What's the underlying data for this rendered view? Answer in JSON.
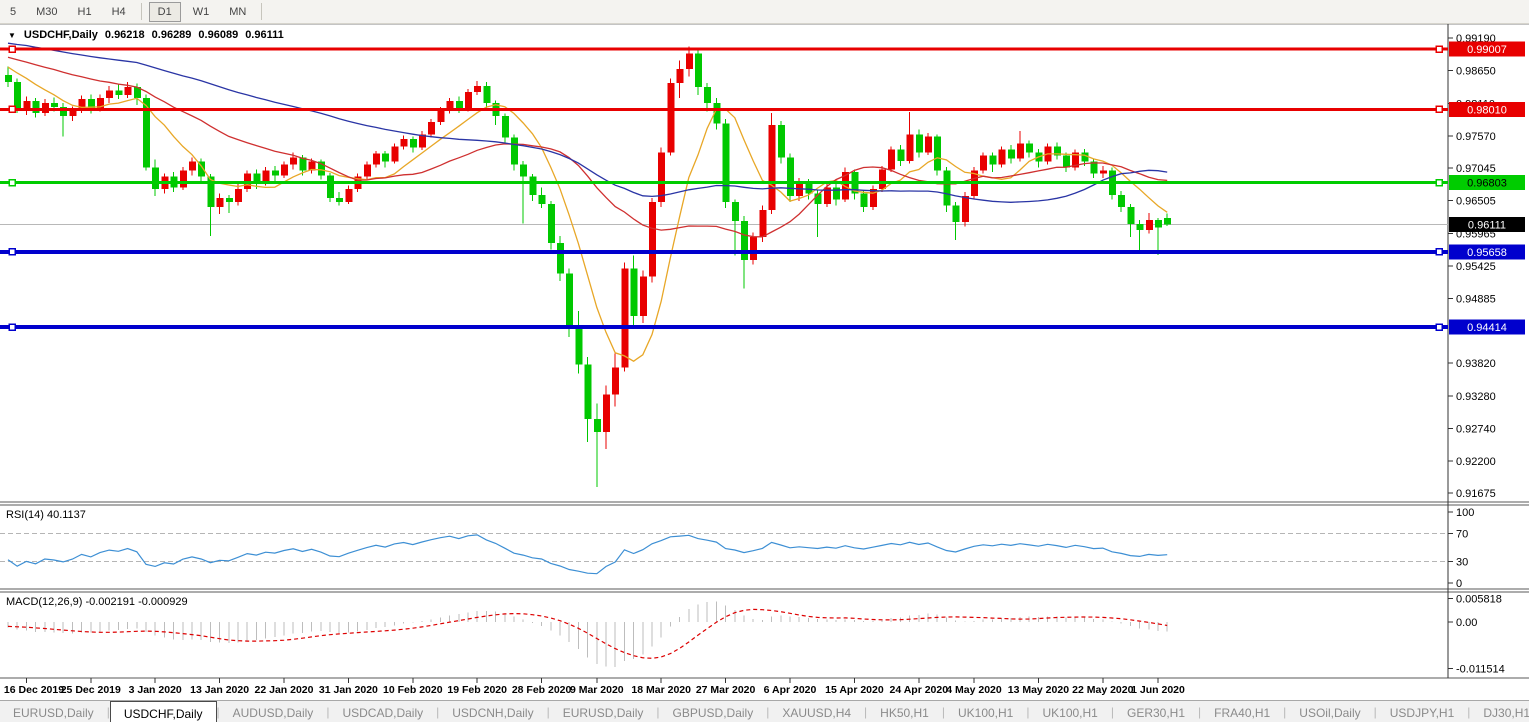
{
  "toolbar": {
    "timeframes": [
      "5",
      "M30",
      "H1",
      "H4",
      "D1",
      "W1",
      "MN"
    ],
    "active_timeframe": "D1"
  },
  "chart_header": {
    "symbol": "USDCHF,Daily",
    "open": "0.96218",
    "high": "0.96289",
    "low": "0.96089",
    "close": "0.96111"
  },
  "price_axis": {
    "ticks": [
      "0.99190",
      "0.98650",
      "0.98110",
      "0.97570",
      "0.97045",
      "0.96505",
      "0.95965",
      "0.95425",
      "0.94885",
      "0.93820",
      "0.93280",
      "0.92740",
      "0.92200",
      "0.91675"
    ],
    "top_price": 0.9919,
    "bottom_price": 0.91675
  },
  "levels": [
    {
      "label": "0.99007",
      "price": 0.99007,
      "color": "#e80000",
      "text_color": "#ffffff",
      "thickness": 3
    },
    {
      "label": "0.98010",
      "price": 0.9801,
      "color": "#e80000",
      "text_color": "#ffffff",
      "thickness": 3
    },
    {
      "label": "0.96803",
      "price": 0.96803,
      "color": "#00cc00",
      "text_color": "#000000",
      "thickness": 3
    },
    {
      "label": "0.95658",
      "price": 0.95658,
      "color": "#0000cd",
      "text_color": "#ffffff",
      "thickness": 4
    },
    {
      "label": "0.94414",
      "price": 0.94414,
      "color": "#0000cd",
      "text_color": "#ffffff",
      "thickness": 4
    }
  ],
  "current_price": {
    "label": "0.96111",
    "price": 0.96111,
    "badge_bg": "#000000",
    "badge_text": "#ffffff",
    "line_color": "#b8b8b8"
  },
  "chart_data": {
    "type": "candlestick",
    "symbol": "USDCHF",
    "timeframe": "Daily",
    "colors": {
      "bull": "#e80000",
      "bear": "#00c800"
    },
    "moving_averages": [
      {
        "type": "sma",
        "period": 8,
        "color": "#e8a727"
      },
      {
        "type": "sma",
        "period": 24,
        "color": "#cf3030"
      },
      {
        "type": "sma",
        "period": 55,
        "color": "#2a35a5"
      }
    ],
    "pre_history_closes": [
      0.9954,
      0.9944,
      0.9952,
      0.9941,
      0.9949,
      0.9938,
      0.9946,
      0.9935,
      0.9943,
      0.9932,
      0.994,
      0.9929,
      0.9937,
      0.9926,
      0.9934,
      0.9923,
      0.9931,
      0.992,
      0.9928,
      0.9917,
      0.9925,
      0.9914,
      0.9922,
      0.9911,
      0.9919,
      0.9908,
      0.9916,
      0.9905,
      0.9913,
      0.9902,
      0.991,
      0.9899,
      0.9907,
      0.9896,
      0.9904,
      0.9893,
      0.9901,
      0.989,
      0.9898,
      0.9887,
      0.9895,
      0.9884,
      0.9892,
      0.9881,
      0.9889,
      0.9878,
      0.9886,
      0.9875,
      0.9883,
      0.9872,
      0.9868,
      0.986
    ],
    "candles": [
      [
        0.9858,
        0.9872,
        0.9838,
        0.9846
      ],
      [
        0.9846,
        0.9852,
        0.9795,
        0.98
      ],
      [
        0.98,
        0.9822,
        0.9792,
        0.9815
      ],
      [
        0.9815,
        0.982,
        0.9788,
        0.9795
      ],
      [
        0.9795,
        0.9818,
        0.979,
        0.9812
      ],
      [
        0.9812,
        0.9821,
        0.9798,
        0.9805
      ],
      [
        0.9805,
        0.9812,
        0.9756,
        0.979
      ],
      [
        0.979,
        0.9806,
        0.9782,
        0.98
      ],
      [
        0.98,
        0.9824,
        0.9795,
        0.9818
      ],
      [
        0.9818,
        0.9826,
        0.9794,
        0.9802
      ],
      [
        0.9802,
        0.9826,
        0.9798,
        0.982
      ],
      [
        0.982,
        0.984,
        0.9812,
        0.9832
      ],
      [
        0.9832,
        0.9842,
        0.9818,
        0.9825
      ],
      [
        0.9825,
        0.9846,
        0.982,
        0.9838
      ],
      [
        0.9838,
        0.9844,
        0.9808,
        0.982
      ],
      [
        0.982,
        0.9826,
        0.97,
        0.9705
      ],
      [
        0.9705,
        0.9718,
        0.9658,
        0.967
      ],
      [
        0.967,
        0.9695,
        0.9662,
        0.969
      ],
      [
        0.969,
        0.9698,
        0.9665,
        0.9672
      ],
      [
        0.9672,
        0.9706,
        0.9668,
        0.97
      ],
      [
        0.97,
        0.9722,
        0.9692,
        0.9715
      ],
      [
        0.9715,
        0.972,
        0.9682,
        0.969
      ],
      [
        0.969,
        0.9694,
        0.9592,
        0.964
      ],
      [
        0.964,
        0.9662,
        0.9628,
        0.9655
      ],
      [
        0.9655,
        0.966,
        0.963,
        0.9648
      ],
      [
        0.9648,
        0.9678,
        0.9642,
        0.967
      ],
      [
        0.967,
        0.97,
        0.9665,
        0.9695
      ],
      [
        0.9695,
        0.9702,
        0.967,
        0.968
      ],
      [
        0.968,
        0.9706,
        0.9675,
        0.97
      ],
      [
        0.97,
        0.9708,
        0.9682,
        0.9692
      ],
      [
        0.9692,
        0.9715,
        0.9688,
        0.971
      ],
      [
        0.971,
        0.973,
        0.9702,
        0.9722
      ],
      [
        0.9722,
        0.9726,
        0.9692,
        0.97
      ],
      [
        0.97,
        0.972,
        0.9695,
        0.9715
      ],
      [
        0.9715,
        0.9718,
        0.9685,
        0.9692
      ],
      [
        0.9692,
        0.9696,
        0.9648,
        0.9655
      ],
      [
        0.9655,
        0.9665,
        0.9642,
        0.9648
      ],
      [
        0.9648,
        0.9675,
        0.9645,
        0.967
      ],
      [
        0.967,
        0.9695,
        0.9665,
        0.969
      ],
      [
        0.969,
        0.9715,
        0.9686,
        0.971
      ],
      [
        0.971,
        0.9732,
        0.9705,
        0.9728
      ],
      [
        0.9728,
        0.9732,
        0.9705,
        0.9715
      ],
      [
        0.9715,
        0.9745,
        0.9712,
        0.974
      ],
      [
        0.974,
        0.9758,
        0.9735,
        0.9752
      ],
      [
        0.9752,
        0.9756,
        0.973,
        0.9738
      ],
      [
        0.9738,
        0.9765,
        0.9734,
        0.976
      ],
      [
        0.976,
        0.9785,
        0.9755,
        0.978
      ],
      [
        0.978,
        0.9805,
        0.9775,
        0.98
      ],
      [
        0.98,
        0.982,
        0.9794,
        0.9815
      ],
      [
        0.9815,
        0.9822,
        0.9795,
        0.9802
      ],
      [
        0.9802,
        0.9835,
        0.9798,
        0.983
      ],
      [
        0.983,
        0.9848,
        0.9825,
        0.984
      ],
      [
        0.984,
        0.9846,
        0.98,
        0.9812
      ],
      [
        0.9812,
        0.9816,
        0.9775,
        0.979
      ],
      [
        0.979,
        0.9794,
        0.9745,
        0.9755
      ],
      [
        0.9755,
        0.976,
        0.97,
        0.971
      ],
      [
        0.971,
        0.9716,
        0.9613,
        0.969
      ],
      [
        0.969,
        0.9694,
        0.965,
        0.966
      ],
      [
        0.966,
        0.9672,
        0.9638,
        0.9645
      ],
      [
        0.9645,
        0.965,
        0.957,
        0.958
      ],
      [
        0.958,
        0.9592,
        0.9518,
        0.953
      ],
      [
        0.953,
        0.9538,
        0.9425,
        0.944
      ],
      [
        0.944,
        0.9468,
        0.9365,
        0.938
      ],
      [
        0.938,
        0.9392,
        0.9252,
        0.929
      ],
      [
        0.929,
        0.9315,
        0.9177,
        0.9268
      ],
      [
        0.9268,
        0.9345,
        0.924,
        0.933
      ],
      [
        0.933,
        0.9398,
        0.931,
        0.9375
      ],
      [
        0.9375,
        0.9548,
        0.9368,
        0.9538
      ],
      [
        0.9538,
        0.956,
        0.944,
        0.946
      ],
      [
        0.946,
        0.9535,
        0.9448,
        0.9525
      ],
      [
        0.9525,
        0.9655,
        0.9515,
        0.9648
      ],
      [
        0.9648,
        0.9738,
        0.964,
        0.973
      ],
      [
        0.973,
        0.9852,
        0.9725,
        0.9845
      ],
      [
        0.9845,
        0.9882,
        0.982,
        0.9868
      ],
      [
        0.9868,
        0.9905,
        0.9855,
        0.9893
      ],
      [
        0.9893,
        0.9898,
        0.9825,
        0.9838
      ],
      [
        0.9838,
        0.9845,
        0.9798,
        0.9812
      ],
      [
        0.9812,
        0.982,
        0.9768,
        0.9778
      ],
      [
        0.9778,
        0.9785,
        0.9638,
        0.9648
      ],
      [
        0.9648,
        0.9652,
        0.956,
        0.9617
      ],
      [
        0.9617,
        0.9625,
        0.9505,
        0.9552
      ],
      [
        0.9552,
        0.9598,
        0.9545,
        0.959
      ],
      [
        0.959,
        0.9642,
        0.9582,
        0.9635
      ],
      [
        0.9635,
        0.9795,
        0.9628,
        0.9775
      ],
      [
        0.9775,
        0.9782,
        0.9712,
        0.9722
      ],
      [
        0.9722,
        0.9728,
        0.9648,
        0.9658
      ],
      [
        0.9658,
        0.9688,
        0.965,
        0.9682
      ],
      [
        0.9682,
        0.9686,
        0.9652,
        0.9662
      ],
      [
        0.9662,
        0.9668,
        0.959,
        0.9645
      ],
      [
        0.9645,
        0.968,
        0.964,
        0.9672
      ],
      [
        0.9672,
        0.9678,
        0.9642,
        0.9652
      ],
      [
        0.9652,
        0.9705,
        0.9648,
        0.9698
      ],
      [
        0.9698,
        0.9702,
        0.9652,
        0.9662
      ],
      [
        0.9662,
        0.9668,
        0.9632,
        0.964
      ],
      [
        0.964,
        0.9675,
        0.9635,
        0.967
      ],
      [
        0.967,
        0.9708,
        0.9665,
        0.9702
      ],
      [
        0.9702,
        0.974,
        0.9698,
        0.9735
      ],
      [
        0.9735,
        0.9742,
        0.9708,
        0.9716
      ],
      [
        0.9716,
        0.9797,
        0.9712,
        0.976
      ],
      [
        0.976,
        0.9768,
        0.9722,
        0.973
      ],
      [
        0.973,
        0.9762,
        0.9726,
        0.9756
      ],
      [
        0.9756,
        0.976,
        0.9692,
        0.97
      ],
      [
        0.97,
        0.9706,
        0.9632,
        0.9642
      ],
      [
        0.9642,
        0.9648,
        0.9585,
        0.9615
      ],
      [
        0.9615,
        0.9665,
        0.9608,
        0.9658
      ],
      [
        0.9658,
        0.9706,
        0.9652,
        0.97
      ],
      [
        0.97,
        0.973,
        0.9695,
        0.9725
      ],
      [
        0.9725,
        0.973,
        0.9698,
        0.971
      ],
      [
        0.971,
        0.974,
        0.9705,
        0.9735
      ],
      [
        0.9735,
        0.9742,
        0.9712,
        0.972
      ],
      [
        0.972,
        0.9765,
        0.9715,
        0.9745
      ],
      [
        0.9745,
        0.975,
        0.9722,
        0.973
      ],
      [
        0.973,
        0.9736,
        0.9705,
        0.9715
      ],
      [
        0.9715,
        0.9745,
        0.971,
        0.974
      ],
      [
        0.974,
        0.9746,
        0.9718,
        0.9725
      ],
      [
        0.9725,
        0.973,
        0.9698,
        0.9705
      ],
      [
        0.9705,
        0.9735,
        0.97,
        0.973
      ],
      [
        0.973,
        0.9736,
        0.9708,
        0.9715
      ],
      [
        0.9715,
        0.972,
        0.9688,
        0.9695
      ],
      [
        0.9695,
        0.9708,
        0.9688,
        0.97
      ],
      [
        0.97,
        0.9705,
        0.9652,
        0.966
      ],
      [
        0.966,
        0.9666,
        0.9632,
        0.964
      ],
      [
        0.964,
        0.9645,
        0.959,
        0.9612
      ],
      [
        0.9612,
        0.9618,
        0.9568,
        0.9602
      ],
      [
        0.9602,
        0.963,
        0.9596,
        0.9618
      ],
      [
        0.9618,
        0.9622,
        0.9561,
        0.9606
      ],
      [
        0.96218,
        0.96289,
        0.96089,
        0.96111
      ]
    ],
    "x_tick_candle_indices": [
      2,
      9,
      16,
      23,
      30,
      37,
      44,
      51,
      58,
      64,
      71,
      78,
      85,
      92,
      99,
      105,
      112,
      119,
      125
    ]
  },
  "rsi_panel": {
    "title": "RSI(14) 40.1137",
    "period": 14,
    "level_lines": [
      70,
      30
    ],
    "axis_ticks": [
      "100",
      "70",
      "30",
      "0"
    ],
    "axis_tick_values": [
      100,
      70,
      30,
      0
    ],
    "line_color": "#3d8fd4"
  },
  "macd_panel": {
    "title": "MACD(12,26,9) -0.002191 -0.000929",
    "fast": 12,
    "slow": 26,
    "signal": 9,
    "axis_ticks": [
      "0.005818",
      "0.00",
      "-0.011514"
    ],
    "axis_tick_values": [
      0.005818,
      0,
      -0.011514
    ],
    "histogram_color": "#bdbdbd",
    "signal_color": "#dd0000"
  },
  "date_axis": {
    "labels": [
      "16 Dec 2019",
      "25 Dec 2019",
      "3 Jan 2020",
      "13 Jan 2020",
      "22 Jan 2020",
      "31 Jan 2020",
      "10 Feb 2020",
      "19 Feb 2020",
      "28 Feb 2020",
      "9 Mar 2020",
      "18 Mar 2020",
      "27 Mar 2020",
      "6 Apr 2020",
      "15 Apr 2020",
      "24 Apr 2020",
      "4 May 2020",
      "13 May 2020",
      "22 May 2020",
      "1 Jun 2020"
    ]
  },
  "tab_bar": {
    "tabs": [
      "EURUSD,Daily",
      "USDCHF,Daily",
      "AUDUSD,Daily",
      "USDCAD,Daily",
      "USDCNH,Daily",
      "EURUSD,Daily",
      "GBPUSD,Daily",
      "XAUUSD,H4",
      "HK50,H1",
      "UK100,H1",
      "UK100,H1",
      "GER30,H1",
      "FRA40,H1",
      "USOil,Daily",
      "USDJPY,H1",
      "DJ30,H1"
    ],
    "active_index": 1,
    "scroll_left": "◂",
    "scroll_right": "▸"
  }
}
